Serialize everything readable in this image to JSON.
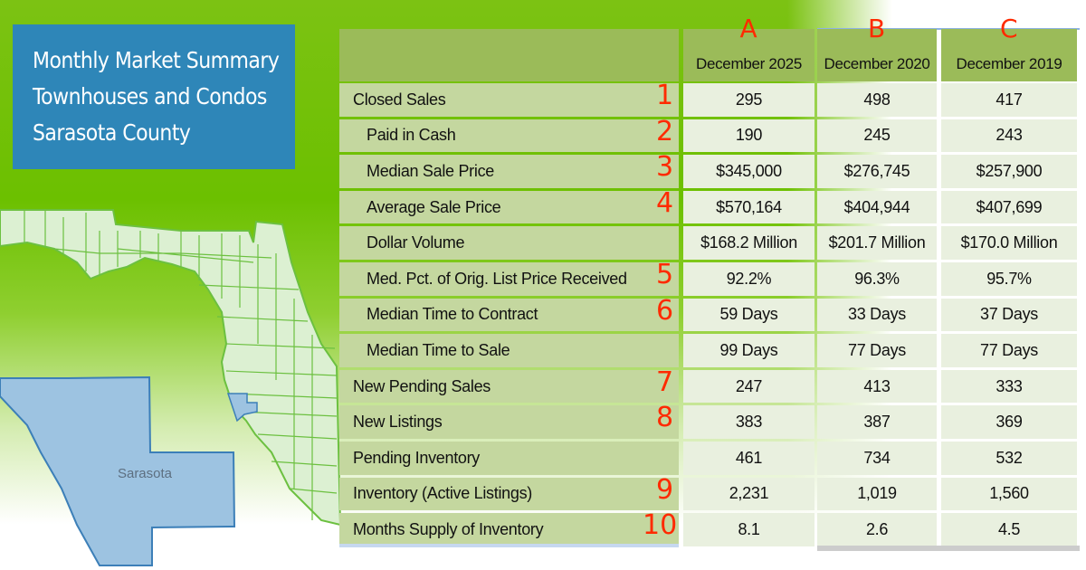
{
  "title_lines": [
    "Monthly Market Summary",
    "Townhouses and Condos",
    "Sarasota County"
  ],
  "map": {
    "highlight_label": "Sarasota",
    "highlight_color": "#9dc3e1",
    "state_color": "#dcf0d2",
    "border_color": "#6cc040"
  },
  "column_markers": [
    "A",
    "B",
    "C"
  ],
  "columns": [
    "December 2025",
    "December 2020",
    "December 2019"
  ],
  "rows": [
    {
      "label": "Closed Sales",
      "marker": "1",
      "indent": false,
      "values": [
        "295",
        "498",
        "417"
      ]
    },
    {
      "label": "Paid in Cash",
      "marker": "2",
      "indent": true,
      "values": [
        "190",
        "245",
        "243"
      ]
    },
    {
      "label": "Median Sale Price",
      "marker": "3",
      "indent": true,
      "values": [
        "$345,000",
        "$276,745",
        "$257,900"
      ]
    },
    {
      "label": "Average Sale Price",
      "marker": "4",
      "indent": true,
      "values": [
        "$570,164",
        "$404,944",
        "$407,699"
      ]
    },
    {
      "label": "Dollar Volume",
      "marker": "",
      "indent": true,
      "values": [
        "$168.2 Million",
        "$201.7 Million",
        "$170.0 Million"
      ]
    },
    {
      "label": "Med. Pct. of Orig. List Price Received",
      "marker": "5",
      "indent": true,
      "values": [
        "92.2%",
        "96.3%",
        "95.7%"
      ]
    },
    {
      "label": "Median Time to Contract",
      "marker": "6",
      "indent": true,
      "values": [
        "59 Days",
        "33 Days",
        "37 Days"
      ]
    },
    {
      "label": "Median Time to Sale",
      "marker": "",
      "indent": true,
      "values": [
        "99 Days",
        "77 Days",
        "77 Days"
      ]
    },
    {
      "label": "New Pending Sales",
      "marker": "7",
      "indent": false,
      "values": [
        "247",
        "413",
        "333"
      ]
    },
    {
      "label": "New Listings",
      "marker": "8",
      "indent": false,
      "values": [
        "383",
        "387",
        "369"
      ]
    },
    {
      "label": "Pending Inventory",
      "marker": "",
      "indent": false,
      "values": [
        "461",
        "734",
        "532"
      ]
    },
    {
      "label": "Inventory (Active Listings)",
      "marker": "9",
      "indent": false,
      "values": [
        "2,231",
        "1,019",
        "1,560"
      ]
    },
    {
      "label": "Months Supply of Inventory",
      "marker": "10",
      "indent": false,
      "values": [
        "8.1",
        "2.6",
        "4.5"
      ]
    }
  ],
  "colors": {
    "header": "#9bbb59",
    "label_cell": "#c4d79f",
    "value_cell": "#e9f0df",
    "marker": "#ff2a00",
    "title_box": "#2e86b8"
  }
}
